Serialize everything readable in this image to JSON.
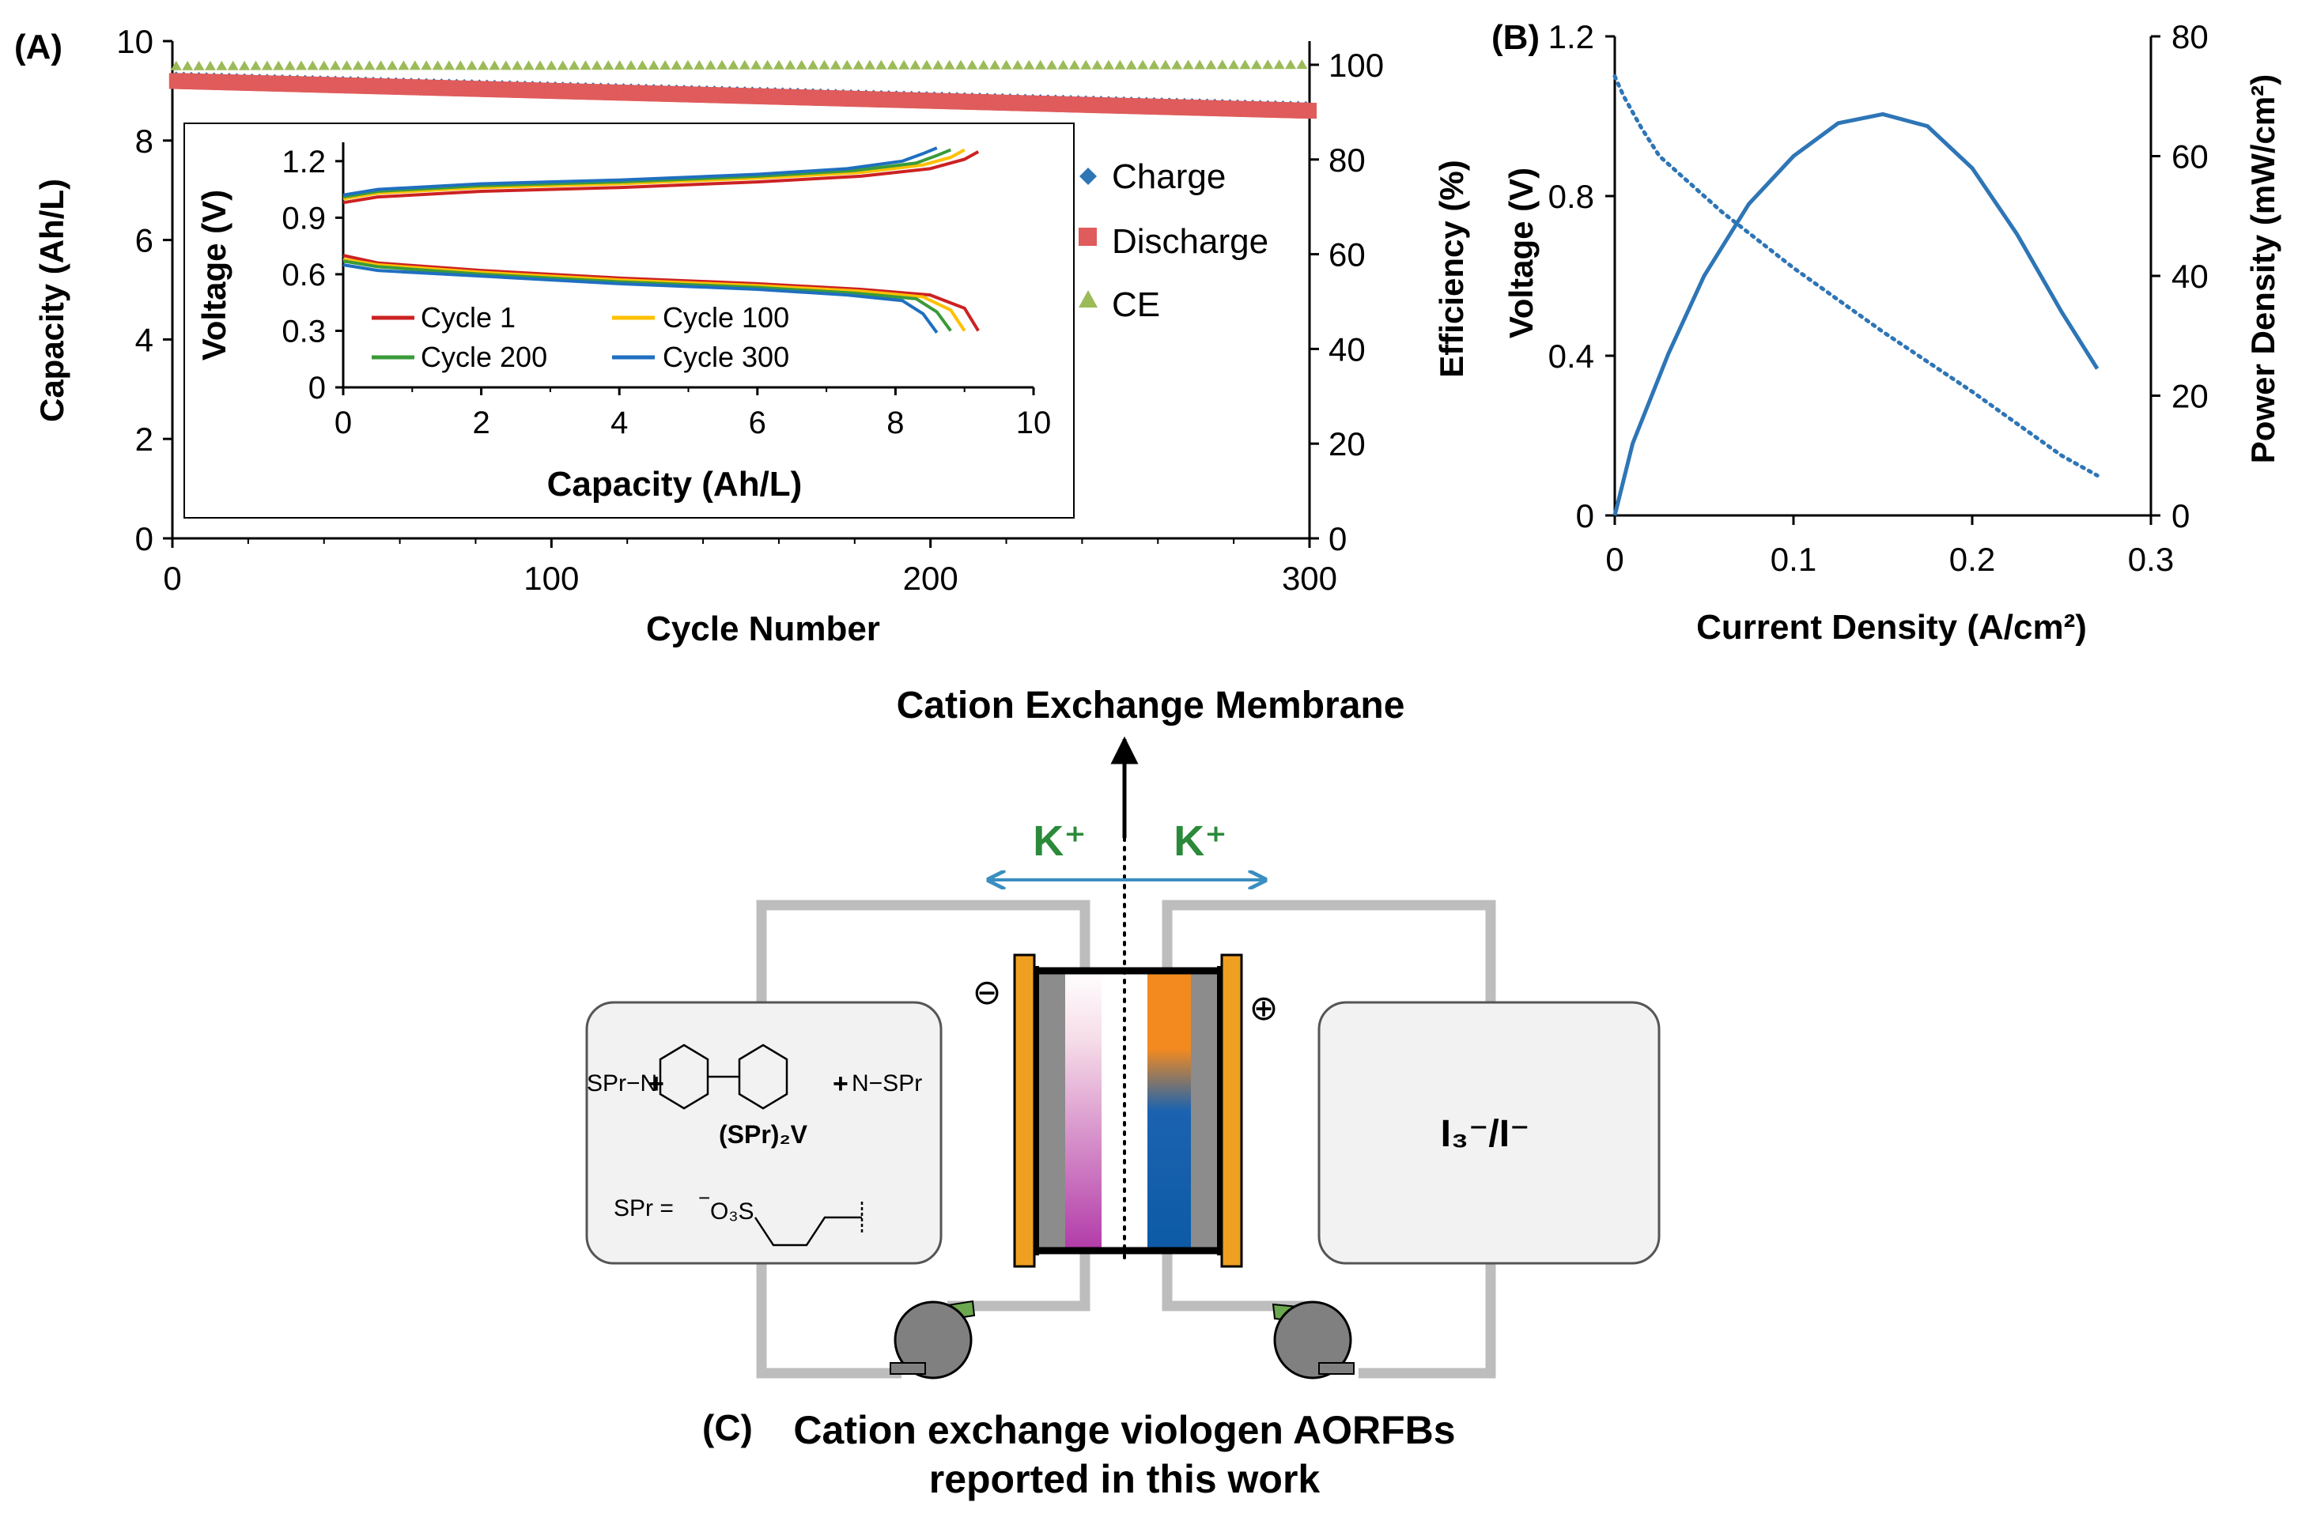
{
  "panel_labels": {
    "a": "(A)",
    "b": "(B)",
    "c": "(C)"
  },
  "colors": {
    "charge": "#2e75b6",
    "discharge": "#e05b5b",
    "ce": "#9bbb59",
    "cycle1": "#cc2222",
    "cycle100": "#ffc000",
    "cycle200": "#3a9a3a",
    "cycle300": "#1f6fc0",
    "panel_b": "#2e75b6",
    "k_ion": "#2a8a3a",
    "arrow": "#3a8ec0",
    "tube": "#bdbdbd"
  },
  "chart_data": [
    {
      "id": "A_main",
      "type": "scatter",
      "xlabel": "Cycle Number",
      "ylabel": "Capacity (Ah/L)",
      "y2label": "Efficiency (%)",
      "xlim": [
        0,
        300
      ],
      "ylim": [
        0,
        10
      ],
      "y2lim": [
        0,
        105
      ],
      "xticks": [
        "0",
        "100",
        "200",
        "300"
      ],
      "yticks": [
        "0",
        "2",
        "4",
        "6",
        "8",
        "10"
      ],
      "y2ticks": [
        "0",
        "20",
        "40",
        "60",
        "80",
        "100"
      ],
      "legend_position": "right",
      "legend": [
        "Charge",
        "Discharge",
        "CE"
      ],
      "series": [
        {
          "name": "Charge",
          "marker": "diamond",
          "axis": "left",
          "x": [
            0,
            50,
            100,
            150,
            200,
            250,
            300
          ],
          "y": [
            9.25,
            9.15,
            9.05,
            8.95,
            8.85,
            8.75,
            8.65
          ]
        },
        {
          "name": "Discharge",
          "marker": "square",
          "axis": "left",
          "x": [
            0,
            50,
            100,
            150,
            200,
            250,
            300
          ],
          "y": [
            9.2,
            9.1,
            9.0,
            8.9,
            8.8,
            8.7,
            8.6
          ]
        },
        {
          "name": "CE",
          "marker": "triangle",
          "axis": "right",
          "x": [
            0,
            50,
            100,
            150,
            200,
            250,
            300
          ],
          "y": [
            99.5,
            99.6,
            99.6,
            99.7,
            99.7,
            99.7,
            99.8
          ]
        }
      ]
    },
    {
      "id": "A_inset",
      "type": "line",
      "xlabel": "Capacity (Ah/L)",
      "ylabel": "Voltage (V)",
      "xlim": [
        0,
        10
      ],
      "ylim": [
        0,
        1.3
      ],
      "xticks": [
        "0",
        "2",
        "4",
        "6",
        "8",
        "10"
      ],
      "yticks": [
        "0",
        "0.3",
        "0.6",
        "0.9",
        "1.2"
      ],
      "legend": [
        "Cycle 1",
        "Cycle 100",
        "Cycle 200",
        "Cycle 300"
      ],
      "series": [
        {
          "name": "Cycle 1",
          "qmax": 9.2,
          "charge": [
            [
              0,
              0.98
            ],
            [
              0.5,
              1.01
            ],
            [
              2,
              1.04
            ],
            [
              4,
              1.06
            ],
            [
              6,
              1.09
            ],
            [
              7.5,
              1.12
            ],
            [
              8.5,
              1.16
            ],
            [
              9.0,
              1.21
            ],
            [
              9.2,
              1.25
            ]
          ],
          "discharge": [
            [
              0,
              0.7
            ],
            [
              0.5,
              0.66
            ],
            [
              2,
              0.62
            ],
            [
              4,
              0.58
            ],
            [
              6,
              0.55
            ],
            [
              7.5,
              0.52
            ],
            [
              8.5,
              0.49
            ],
            [
              9.0,
              0.42
            ],
            [
              9.2,
              0.3
            ]
          ]
        },
        {
          "name": "Cycle 100",
          "qmax": 9.0,
          "charge": [
            [
              0,
              1.0
            ],
            [
              0.5,
              1.03
            ],
            [
              2,
              1.06
            ],
            [
              4,
              1.08
            ],
            [
              6,
              1.11
            ],
            [
              7.5,
              1.14
            ],
            [
              8.4,
              1.18
            ],
            [
              8.8,
              1.22
            ],
            [
              9.0,
              1.26
            ]
          ],
          "discharge": [
            [
              0,
              0.68
            ],
            [
              0.5,
              0.65
            ],
            [
              2,
              0.61
            ],
            [
              4,
              0.57
            ],
            [
              6,
              0.54
            ],
            [
              7.5,
              0.51
            ],
            [
              8.4,
              0.48
            ],
            [
              8.8,
              0.41
            ],
            [
              9.0,
              0.3
            ]
          ]
        },
        {
          "name": "Cycle 200",
          "qmax": 8.8,
          "charge": [
            [
              0,
              1.01
            ],
            [
              0.5,
              1.04
            ],
            [
              2,
              1.07
            ],
            [
              4,
              1.09
            ],
            [
              6,
              1.12
            ],
            [
              7.4,
              1.15
            ],
            [
              8.3,
              1.19
            ],
            [
              8.6,
              1.23
            ],
            [
              8.8,
              1.26
            ]
          ],
          "discharge": [
            [
              0,
              0.67
            ],
            [
              0.5,
              0.64
            ],
            [
              2,
              0.6
            ],
            [
              4,
              0.56
            ],
            [
              6,
              0.53
            ],
            [
              7.4,
              0.5
            ],
            [
              8.3,
              0.47
            ],
            [
              8.6,
              0.4
            ],
            [
              8.8,
              0.3
            ]
          ]
        },
        {
          "name": "Cycle 300",
          "qmax": 8.6,
          "charge": [
            [
              0,
              1.02
            ],
            [
              0.5,
              1.05
            ],
            [
              2,
              1.08
            ],
            [
              4,
              1.1
            ],
            [
              6,
              1.13
            ],
            [
              7.3,
              1.16
            ],
            [
              8.1,
              1.2
            ],
            [
              8.4,
              1.24
            ],
            [
              8.6,
              1.27
            ]
          ],
          "discharge": [
            [
              0,
              0.65
            ],
            [
              0.5,
              0.62
            ],
            [
              2,
              0.59
            ],
            [
              4,
              0.55
            ],
            [
              6,
              0.52
            ],
            [
              7.3,
              0.49
            ],
            [
              8.1,
              0.46
            ],
            [
              8.4,
              0.39
            ],
            [
              8.6,
              0.29
            ]
          ]
        }
      ]
    },
    {
      "id": "B",
      "type": "line",
      "xlabel": "Current Density (A/cm²)",
      "ylabel": "Voltage (V)",
      "y2label": "Power Density (mW/cm²)",
      "xlim": [
        0,
        0.3
      ],
      "ylim": [
        0,
        1.2
      ],
      "y2lim": [
        0,
        80
      ],
      "xticks": [
        "0",
        "0.1",
        "0.2",
        "0.3"
      ],
      "yticks": [
        "0",
        "0.4",
        "0.8",
        "1.2"
      ],
      "y2ticks": [
        "0",
        "20",
        "40",
        "60",
        "80"
      ],
      "series": [
        {
          "name": "Voltage",
          "style": "dotted",
          "axis": "left",
          "x": [
            0,
            0.005,
            0.015,
            0.025,
            0.04,
            0.06,
            0.1,
            0.15,
            0.2,
            0.25,
            0.27
          ],
          "y": [
            1.1,
            1.05,
            0.97,
            0.9,
            0.84,
            0.76,
            0.62,
            0.46,
            0.31,
            0.15,
            0.1
          ]
        },
        {
          "name": "Power Density",
          "style": "solid",
          "axis": "right",
          "x": [
            0,
            0.01,
            0.03,
            0.05,
            0.075,
            0.1,
            0.125,
            0.15,
            0.175,
            0.2,
            0.225,
            0.25,
            0.27
          ],
          "y": [
            0,
            12,
            27,
            40,
            52,
            60,
            65.5,
            67,
            65,
            58,
            47,
            34,
            24.5
          ]
        }
      ]
    }
  ],
  "schematic": {
    "membrane_label": "Cation Exchange Membrane",
    "ion_left": "K⁺",
    "ion_right": "K⁺",
    "neg_symbol": "⊖",
    "pos_symbol": "⊕",
    "left_tank": {
      "sub_left": "SPr−N",
      "sub_right": "N−SPr",
      "plus": "+",
      "compound": "(SPr)₂V",
      "spr_def": "SPr =",
      "sulfonate_minus": "−",
      "sulfonate": "O₃S"
    },
    "right_tank": {
      "label": "I₃⁻/I⁻"
    },
    "caption_letter": "(C)",
    "caption_line1": "Cation exchange viologen AORFBs",
    "caption_line2": "reported in this work"
  }
}
